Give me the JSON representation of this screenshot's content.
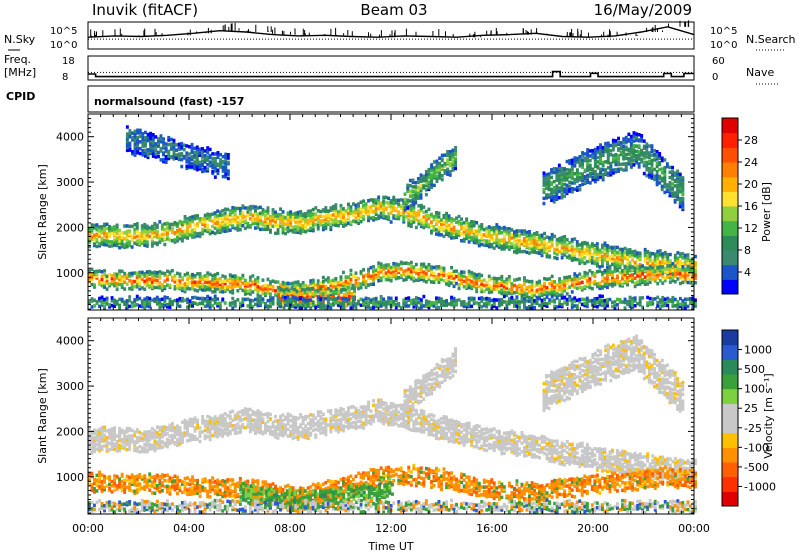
{
  "header": {
    "station": "Inuvik (fitACF)",
    "beam": "Beam 03",
    "date": "16/May/2009"
  },
  "colors": {
    "power_scale": [
      "#0000ff",
      "#1a56c8",
      "#3a8a70",
      "#2e8b57",
      "#44b444",
      "#90d040",
      "#ffe030",
      "#ffb000",
      "#ff8000",
      "#ff5000",
      "#ff2000",
      "#e00000"
    ],
    "velocity_scale": [
      "#1a3ca0",
      "#2a5ad0",
      "#2a8a5a",
      "#3aa03a",
      "#7dd040",
      "#c8c8c8",
      "#c8c8c8",
      "#ffc000",
      "#ff9000",
      "#ff6000",
      "#ff3000",
      "#e00000"
    ],
    "ground_scatter": "#c8c8c8"
  },
  "chart_data": [
    {
      "type": "line",
      "id": "nsky-nsearch",
      "left_label": [
        "N.Sky"
      ],
      "left_ticks": [
        "10^5",
        "10^0"
      ],
      "right_label": "N.Search",
      "right_ticks": [
        "10^5",
        "10^0"
      ],
      "series": [
        {
          "style": "solid",
          "values": [
            1.2,
            1.4,
            1.3,
            1.5,
            1.8,
            2.2,
            2.0,
            1.6,
            1.4,
            1.5,
            1.3,
            1.2,
            1.4,
            1.3,
            1.2,
            1.5,
            1.6,
            1.8,
            1.3,
            1.2,
            1.4,
            2.0,
            2.8,
            1.6
          ]
        },
        {
          "style": "dotted",
          "values": [
            0.9,
            0.9,
            0.9,
            0.9,
            0.9,
            0.9,
            0.9,
            0.9,
            0.9,
            0.9,
            0.9,
            0.9,
            0.9,
            0.9,
            0.9,
            0.9,
            0.9,
            0.9,
            0.9,
            0.9,
            0.9,
            0.9,
            0.9,
            0.9
          ]
        }
      ]
    },
    {
      "type": "line",
      "id": "freq-nave",
      "left_label": [
        "Freq.",
        "[MHz]"
      ],
      "left_ticks": [
        "18",
        "8"
      ],
      "right_label": "Nave",
      "right_ticks": [
        "60",
        "0"
      ],
      "steps": [
        [
          0.0,
          10.5
        ],
        [
          0.3,
          9.4
        ],
        [
          18.4,
          11.5
        ],
        [
          18.7,
          9.4
        ],
        [
          19.9,
          10.8
        ],
        [
          20.2,
          9.4
        ],
        [
          22.8,
          10.7
        ],
        [
          23.1,
          9.4
        ],
        [
          23.6,
          10.7
        ],
        [
          24.0,
          10.7
        ]
      ],
      "reference_level": 11.2
    },
    {
      "type": "table",
      "id": "cpid",
      "label": "CPID",
      "value": "normalsound (fast) -157"
    },
    {
      "type": "heatmap",
      "id": "power",
      "ylabel": "Slant Range [km]",
      "ylim": [
        180,
        4500
      ],
      "yticks": [
        1000,
        2000,
        3000,
        4000
      ],
      "xlim": [
        0,
        24
      ],
      "colorbar_label": "Power [dB]",
      "colorbar_range": [
        0,
        32
      ],
      "colorbar_ticks": [
        "4",
        "8",
        "12",
        "16",
        "20",
        "24",
        "28"
      ],
      "bands": [
        {
          "t": [
            0,
            24
          ],
          "centers": [
            1750,
            1800,
            1750,
            1850,
            2000,
            2100,
            2200,
            2100,
            2050,
            2150,
            2250,
            2400,
            2300,
            2100,
            1950,
            1800,
            1700,
            1600,
            1500,
            1400,
            1300,
            1200,
            1150,
            1100
          ],
          "width": 450,
          "peak": 22
        },
        {
          "t": [
            0,
            24
          ],
          "centers": [
            850,
            800,
            820,
            780,
            750,
            720,
            700,
            600,
            550,
            650,
            800,
            950,
            1000,
            950,
            850,
            700,
            650,
            600,
            700,
            800,
            850,
            900,
            950,
            900
          ],
          "width": 350,
          "peak": 26
        },
        {
          "t": [
            7.5,
            10.5
          ],
          "centers": [
            400,
            400,
            380,
            400
          ],
          "width": 400,
          "peak": 30
        },
        {
          "t": [
            0,
            24
          ],
          "centers": [
            300,
            300,
            300,
            300,
            300,
            300,
            300,
            300,
            300,
            300,
            300,
            300,
            300,
            300,
            300,
            300,
            300,
            300,
            300,
            300,
            300,
            300,
            300,
            300
          ],
          "width": 180,
          "peak": 12
        },
        {
          "t": [
            12.5,
            14.5
          ],
          "centers": [
            2600,
            2900,
            3200,
            3500
          ],
          "width": 500,
          "peak": 14
        },
        {
          "t": [
            18.0,
            23.5
          ],
          "centers": [
            2800,
            3300,
            3700,
            2700
          ],
          "width": 700,
          "peak": 10
        },
        {
          "t": [
            1.5,
            5.5
          ],
          "centers": [
            3900,
            3700,
            3500,
            3300
          ],
          "width": 500,
          "peak": 6
        }
      ]
    },
    {
      "type": "heatmap",
      "id": "velocity",
      "ylabel": "Slant Range [km]",
      "ylim": [
        180,
        4500
      ],
      "yticks": [
        1000,
        2000,
        3000,
        4000
      ],
      "xlabel": "Time UT",
      "xticks": [
        "00:00",
        "04:00",
        "08:00",
        "12:00",
        "16:00",
        "20:00",
        "00:00"
      ],
      "xlim": [
        0,
        24
      ],
      "colorbar_label": "Velocity [m s⁻¹]",
      "colorbar_ticks": [
        "1000",
        "500",
        "100",
        "25",
        "-25",
        "-100",
        "-500",
        "-1000"
      ],
      "bands": [
        {
          "t": [
            0,
            24
          ],
          "centers": [
            1750,
            1800,
            1750,
            1850,
            2000,
            2100,
            2200,
            2100,
            2050,
            2150,
            2250,
            2400,
            2300,
            2100,
            1950,
            1800,
            1700,
            1600,
            1500,
            1400,
            1300,
            1200,
            1150,
            1100
          ],
          "width": 450,
          "class": "ground"
        },
        {
          "t": [
            0,
            24
          ],
          "centers": [
            850,
            800,
            820,
            780,
            750,
            720,
            700,
            600,
            550,
            650,
            800,
            950,
            1000,
            950,
            850,
            700,
            650,
            600,
            700,
            800,
            850,
            900,
            950,
            900
          ],
          "width": 350,
          "class": "negative"
        },
        {
          "t": [
            6.0,
            12.0
          ],
          "centers": [
            600,
            500,
            450,
            500,
            600,
            700
          ],
          "width": 350,
          "class": "positive"
        },
        {
          "t": [
            0,
            24
          ],
          "centers": [
            300,
            300,
            300,
            300,
            300,
            300,
            300,
            300,
            300,
            300,
            300,
            300,
            300,
            300,
            300,
            300,
            300,
            300,
            300,
            300,
            300,
            300,
            300,
            300
          ],
          "width": 180,
          "class": "mixed"
        },
        {
          "t": [
            12.5,
            14.5
          ],
          "centers": [
            2600,
            2900,
            3200,
            3500
          ],
          "width": 500,
          "class": "ground"
        },
        {
          "t": [
            18.0,
            23.5
          ],
          "centers": [
            2800,
            3300,
            3700,
            2700
          ],
          "width": 700,
          "class": "ground"
        }
      ]
    }
  ]
}
